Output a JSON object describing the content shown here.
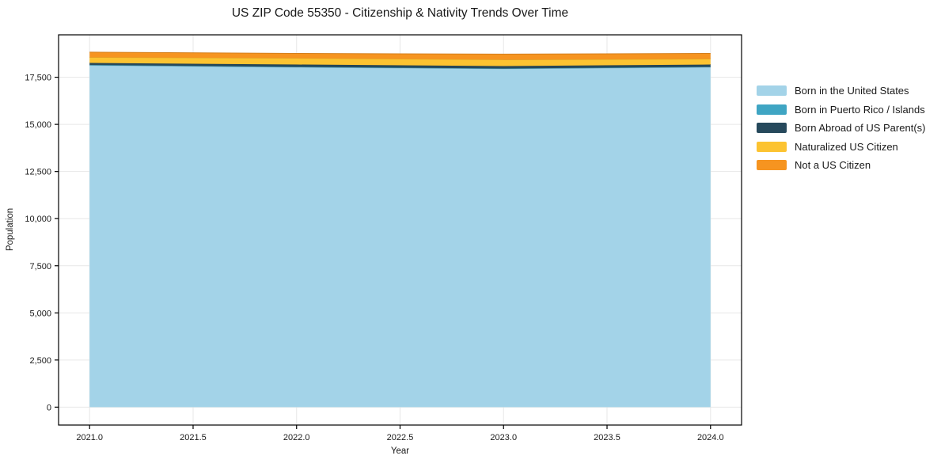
{
  "figure": {
    "background": "#ffffff",
    "text_color": "#1a1a1a",
    "grid_color": "#e7e7e7",
    "spine_color": "#000000"
  },
  "chart_data": {
    "type": "area",
    "stacked": true,
    "title": "US ZIP Code 55350 - Citizenship & Nativity Trends Over Time",
    "xlabel": "Year",
    "ylabel": "Population",
    "x": [
      2021,
      2022,
      2023,
      2024
    ],
    "series": [
      {
        "name": "Born in the United States",
        "color": "#a3d3e8",
        "values": [
          18130,
          18030,
          17950,
          18030
        ]
      },
      {
        "name": "Born in Puerto Rico / Islands",
        "color": "#3fa5c3",
        "values": [
          25,
          20,
          15,
          20
        ]
      },
      {
        "name": "Born Abroad of US Parent(s)",
        "color": "#26495c",
        "values": [
          105,
          125,
          125,
          125
        ]
      },
      {
        "name": "Naturalized US Citizen",
        "color": "#fcc331",
        "values": [
          295,
          335,
          340,
          295
        ]
      },
      {
        "name": "Not a US Citizen",
        "color": "#f69420",
        "values": [
          275,
          255,
          295,
          295
        ]
      }
    ],
    "totals": [
      18830,
      18765,
      18725,
      18765
    ],
    "xlim": [
      2020.85,
      2024.15
    ],
    "ylim": [
      -950,
      19750
    ],
    "xticks": [
      2021.0,
      2021.5,
      2022.0,
      2022.5,
      2023.0,
      2023.5,
      2024.0
    ],
    "xtick_labels": [
      "2021.0",
      "2021.5",
      "2022.0",
      "2022.5",
      "2023.0",
      "2023.5",
      "2024.0"
    ],
    "yticks": [
      0,
      2500,
      5000,
      7500,
      10000,
      12500,
      15000,
      17500
    ],
    "ytick_labels": [
      "0",
      "2,500",
      "5,000",
      "7,500",
      "10,000",
      "12,500",
      "15,000",
      "17,500"
    ],
    "grid": true,
    "legend_position": "outside-right"
  }
}
